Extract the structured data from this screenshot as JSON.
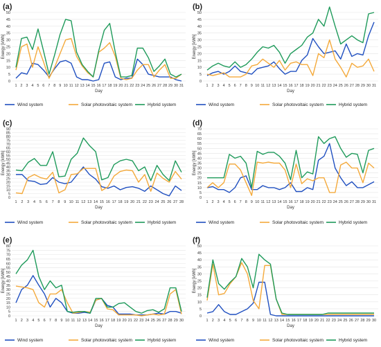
{
  "colors": {
    "wind": "#1f4fc0",
    "solar": "#f4a93a",
    "hybrid": "#1e9a5a"
  },
  "chart_data": [
    {
      "type": "line",
      "panel": "(a)",
      "ylabel": "Energy [kWh]",
      "xlabel": "Day",
      "ylim": [
        0,
        50
      ],
      "grid": true,
      "legend": "bottom",
      "x": [
        1,
        2,
        3,
        4,
        5,
        6,
        7,
        8,
        9,
        10,
        11,
        12,
        13,
        14,
        15,
        16,
        17,
        18,
        19,
        20,
        21,
        22,
        23,
        24,
        25,
        26,
        27,
        28,
        29,
        30,
        31
      ],
      "series": [
        {
          "name": "Wind system",
          "key": "wind",
          "values": [
            2,
            6,
            5,
            13,
            12,
            8,
            3,
            9,
            14,
            15,
            13,
            3,
            1,
            1,
            0,
            1,
            13,
            14,
            3,
            1,
            2,
            2,
            16,
            12,
            5,
            4,
            3,
            3,
            3,
            1,
            0
          ]
        },
        {
          "name": "Solar photovoltaic system",
          "key": "solar",
          "values": [
            8,
            25,
            27,
            10,
            25,
            14,
            2,
            10,
            20,
            30,
            31,
            18,
            11,
            6,
            3,
            21,
            24,
            28,
            18,
            2,
            1,
            2,
            8,
            12,
            12,
            3,
            8,
            12,
            2,
            2,
            5
          ]
        },
        {
          "name": "Hybrid system",
          "key": "hybrid",
          "values": [
            10,
            31,
            32,
            23,
            38,
            22,
            5,
            19,
            34,
            45,
            44,
            21,
            12,
            7,
            3,
            22,
            37,
            42,
            21,
            3,
            3,
            4,
            24,
            24,
            17,
            7,
            11,
            16,
            5,
            3,
            5
          ]
        }
      ]
    },
    {
      "type": "line",
      "panel": "(b)",
      "ylabel": "Energy [kWh]",
      "xlabel": "Day",
      "ylim": [
        0,
        50
      ],
      "grid": true,
      "legend": "bottom",
      "x": [
        1,
        2,
        3,
        4,
        5,
        6,
        7,
        8,
        9,
        10,
        11,
        12,
        13,
        14,
        15,
        16,
        17,
        18,
        19,
        20,
        21,
        22,
        23,
        24,
        25,
        26,
        27,
        28,
        29,
        30,
        31
      ],
      "series": [
        {
          "name": "Wind system",
          "key": "wind",
          "values": [
            4,
            6,
            7,
            5,
            7,
            11,
            7,
            6,
            5,
            9,
            10,
            11,
            14,
            9,
            5,
            7,
            7,
            15,
            19,
            31,
            25,
            20,
            21,
            22,
            16,
            27,
            18,
            20,
            19,
            33,
            43
          ]
        },
        {
          "name": "Solar photovoltaic system",
          "key": "solar",
          "values": [
            5,
            4,
            5,
            6,
            3,
            3,
            3,
            5,
            11,
            12,
            16,
            13,
            10,
            15,
            8,
            13,
            14,
            12,
            12,
            4,
            20,
            17,
            30,
            16,
            10,
            3,
            13,
            10,
            11,
            16,
            7
          ]
        },
        {
          "name": "Hybrid system",
          "key": "hybrid",
          "values": [
            8,
            11,
            13,
            11,
            10,
            14,
            10,
            12,
            16,
            21,
            25,
            24,
            26,
            21,
            13,
            20,
            23,
            26,
            32,
            35,
            45,
            40,
            54,
            40,
            27,
            30,
            33,
            30,
            28,
            49,
            50
          ]
        }
      ]
    },
    {
      "type": "line",
      "panel": "(c)",
      "ylabel": "Energy [kWh]",
      "xlabel": "Day",
      "ylim": [
        0,
        90
      ],
      "grid": true,
      "legend": "bottom",
      "x": [
        1,
        2,
        3,
        4,
        5,
        6,
        7,
        8,
        9,
        10,
        11,
        12,
        13,
        14,
        15,
        16,
        17,
        18,
        19,
        20,
        21,
        22,
        23,
        24,
        25,
        26,
        27,
        28
      ],
      "series": [
        {
          "name": "Wind system",
          "key": "wind",
          "values": [
            30,
            30,
            22,
            21,
            17,
            18,
            26,
            20,
            18,
            20,
            30,
            40,
            30,
            24,
            14,
            12,
            15,
            10,
            13,
            14,
            12,
            8,
            15,
            10,
            5,
            2,
            15,
            9
          ]
        },
        {
          "name": "Solar photovoltaic system",
          "key": "solar",
          "values": [
            6,
            5,
            26,
            30,
            26,
            24,
            33,
            6,
            10,
            30,
            31,
            38,
            38,
            38,
            9,
            14,
            28,
            34,
            36,
            35,
            20,
            30,
            8,
            32,
            25,
            20,
            34,
            24
          ]
        },
        {
          "name": "Hybrid system",
          "key": "hybrid",
          "values": [
            36,
            35,
            46,
            51,
            42,
            42,
            60,
            27,
            28,
            50,
            58,
            78,
            68,
            60,
            23,
            26,
            43,
            48,
            50,
            48,
            35,
            40,
            22,
            42,
            30,
            22,
            48,
            33
          ]
        }
      ]
    },
    {
      "type": "line",
      "panel": "(d)",
      "ylabel": "Energy [kWh]",
      "xlabel": "Day",
      "ylim": [
        0,
        70
      ],
      "grid": true,
      "legend": "bottom",
      "x": [
        1,
        2,
        3,
        4,
        5,
        6,
        7,
        8,
        9,
        10,
        11,
        12,
        13,
        14,
        15,
        16,
        17,
        18,
        19,
        20,
        21,
        22,
        23,
        24,
        25,
        26,
        27,
        28,
        29,
        30,
        31
      ],
      "series": [
        {
          "name": "Wind system",
          "key": "wind",
          "values": [
            10,
            11,
            8,
            8,
            5,
            10,
            20,
            22,
            8,
            8,
            12,
            10,
            10,
            8,
            10,
            15,
            6,
            6,
            10,
            8,
            38,
            42,
            55,
            30,
            20,
            12,
            16,
            10,
            10,
            13,
            16
          ]
        },
        {
          "name": "Solar photovoltaic system",
          "key": "solar",
          "values": [
            10,
            15,
            10,
            15,
            34,
            34,
            28,
            15,
            2,
            36,
            35,
            36,
            35,
            35,
            28,
            10,
            34,
            14,
            19,
            17,
            20,
            20,
            5,
            5,
            33,
            36,
            30,
            30,
            15,
            35,
            30
          ]
        },
        {
          "name": "Hybrid system",
          "key": "hybrid",
          "values": [
            20,
            20,
            20,
            20,
            44,
            40,
            42,
            35,
            10,
            47,
            44,
            46,
            46,
            42,
            35,
            18,
            48,
            20,
            26,
            24,
            62,
            55,
            60,
            62,
            50,
            41,
            45,
            44,
            25,
            48,
            50
          ]
        }
      ]
    },
    {
      "type": "line",
      "panel": "(e)",
      "ylabel": "Energy [kWh]",
      "xlabel": "Day",
      "ylim": [
        0,
        80
      ],
      "grid": true,
      "legend": "bottom",
      "x": [
        1,
        2,
        3,
        4,
        5,
        6,
        7,
        8,
        9,
        10,
        11,
        12,
        13,
        14,
        15,
        16,
        17,
        18,
        19,
        20,
        21,
        22,
        23,
        24,
        25,
        26,
        27,
        28,
        29,
        30
      ],
      "series": [
        {
          "name": "Wind system",
          "key": "wind",
          "values": [
            15,
            30,
            35,
            46,
            35,
            25,
            10,
            20,
            15,
            5,
            3,
            3,
            4,
            3,
            18,
            20,
            12,
            10,
            2,
            2,
            2,
            1,
            1,
            1,
            2,
            3,
            2,
            5,
            5,
            3
          ]
        },
        {
          "name": "Solar photovoltaic system",
          "key": "solar",
          "values": [
            34,
            33,
            32,
            30,
            15,
            10,
            25,
            25,
            30,
            15,
            3,
            4,
            5,
            4,
            18,
            20,
            8,
            7,
            1,
            1,
            1,
            1,
            0,
            1,
            2,
            1,
            2,
            25,
            30,
            2
          ]
        },
        {
          "name": "Hybrid system",
          "key": "hybrid",
          "values": [
            48,
            58,
            64,
            75,
            45,
            30,
            40,
            32,
            35,
            5,
            4,
            5,
            5,
            3,
            20,
            20,
            10,
            10,
            14,
            15,
            10,
            5,
            3,
            6,
            7,
            4,
            8,
            32,
            32,
            5
          ]
        }
      ]
    },
    {
      "type": "line",
      "panel": "(f)",
      "ylabel": "Energy [kWh]",
      "xlabel": "Day",
      "ylim": [
        0,
        50
      ],
      "grid": true,
      "legend": "bottom",
      "x": [
        1,
        2,
        3,
        4,
        5,
        6,
        7,
        8,
        9,
        10,
        11,
        12,
        13,
        14,
        15,
        16,
        17,
        18,
        19,
        20,
        21,
        22,
        23,
        24,
        25,
        26,
        27,
        28,
        29,
        30
      ],
      "series": [
        {
          "name": "Wind system",
          "key": "wind",
          "values": [
            2,
            3,
            8,
            3,
            1,
            1,
            3,
            5,
            9,
            24,
            24,
            1,
            0,
            0,
            0,
            0,
            0,
            0,
            0,
            0,
            0,
            0,
            0,
            0,
            0,
            0,
            0,
            0,
            0,
            0
          ]
        },
        {
          "name": "Solar photovoltaic system",
          "key": "solar",
          "values": [
            11,
            37,
            15,
            16,
            23,
            28,
            38,
            30,
            11,
            5,
            36,
            36,
            12,
            1,
            1,
            1,
            1,
            1,
            1,
            1,
            1,
            1,
            1,
            1,
            1,
            1,
            1,
            1,
            1,
            1
          ]
        },
        {
          "name": "Hybrid system",
          "key": "hybrid",
          "values": [
            13,
            40,
            23,
            19,
            24,
            28,
            41,
            35,
            20,
            44,
            40,
            37,
            12,
            2,
            1,
            1,
            1,
            1,
            1,
            1,
            1,
            2,
            2,
            2,
            2,
            2,
            2,
            2,
            2,
            2
          ]
        }
      ]
    }
  ]
}
